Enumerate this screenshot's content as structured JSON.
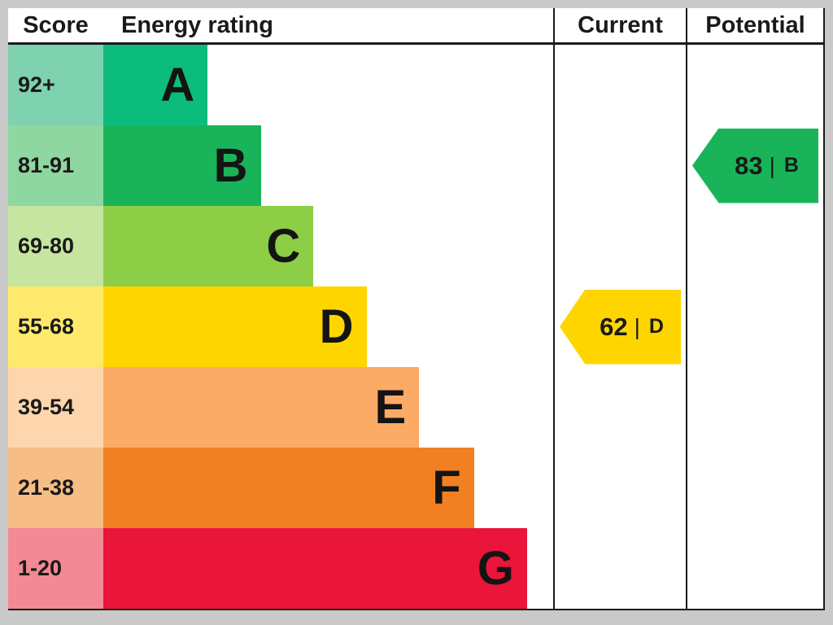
{
  "header": {
    "score_label": "Score",
    "energy_rating_label": "Energy rating",
    "current_label": "Current",
    "potential_label": "Potential"
  },
  "bands": [
    {
      "score_range": "92+",
      "letter": "A",
      "color": "#0cbc7c",
      "tint": "#7fd2af",
      "width": "23.2%"
    },
    {
      "score_range": "81-91",
      "letter": "B",
      "color": "#19b459",
      "tint": "#8fd7a0",
      "width": "35.0%"
    },
    {
      "score_range": "69-80",
      "letter": "C",
      "color": "#8dce46",
      "tint": "#c5e5a0",
      "width": "46.7%"
    },
    {
      "score_range": "55-68",
      "letter": "D",
      "color": "#ffd500",
      "tint": "#ffe96d",
      "width": "58.5%"
    },
    {
      "score_range": "39-54",
      "letter": "E",
      "color": "#fbab66",
      "tint": "#fdd6ad",
      "width": "70.2%"
    },
    {
      "score_range": "21-38",
      "letter": "F",
      "color": "#f18023",
      "tint": "#f6bd85",
      "width": "82.4%"
    },
    {
      "score_range": "1-20",
      "letter": "G",
      "color": "#e9153b",
      "tint": "#f28994",
      "width": "94.2%"
    }
  ],
  "current": {
    "value": "62",
    "divider": "|",
    "letter": "D",
    "color": "#ffd500"
  },
  "potential": {
    "value": "83",
    "divider": "|",
    "letter": "B",
    "color": "#19b459"
  },
  "chart_data": {
    "type": "bar",
    "title": "EPC Energy rating",
    "categories": [
      "A",
      "B",
      "C",
      "D",
      "E",
      "F",
      "G"
    ],
    "score_ranges": [
      "92+",
      "81-91",
      "69-80",
      "55-68",
      "39-54",
      "21-38",
      "1-20"
    ],
    "bar_relative_widths": [
      0.23,
      0.35,
      0.47,
      0.58,
      0.7,
      0.82,
      0.94
    ],
    "bar_colors": [
      "#0cbc7c",
      "#19b459",
      "#8dce46",
      "#ffd500",
      "#fbab66",
      "#f18023",
      "#e9153b"
    ],
    "columns": [
      "Score",
      "Energy rating",
      "Current",
      "Potential"
    ],
    "markers": [
      {
        "column": "Current",
        "score": 62,
        "rating": "D",
        "row_letter": "D",
        "color": "#ffd500"
      },
      {
        "column": "Potential",
        "score": 83,
        "rating": "B",
        "row_letter": "B",
        "color": "#19b459"
      }
    ],
    "legend_position": "none",
    "grid": false
  }
}
